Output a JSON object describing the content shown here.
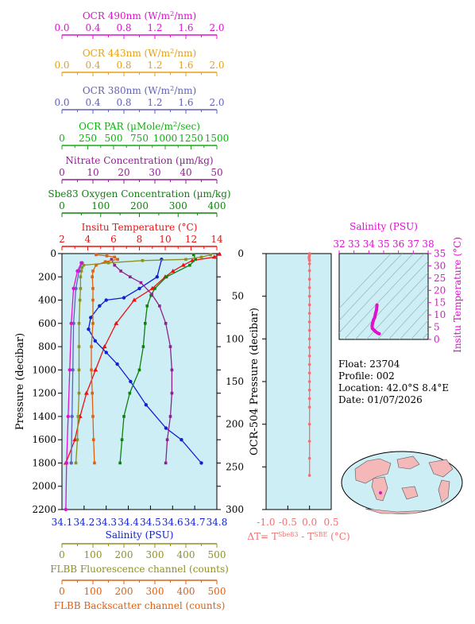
{
  "colors": {
    "ocr490": "#e010d0",
    "ocr443": "#e8a010",
    "ocr380": "#6060c0",
    "par": "#10b010",
    "nitrate": "#902090",
    "oxygen": "#108010",
    "temperature": "#ee1010",
    "salinity": "#1020d0",
    "fluorescence": "#909020",
    "backscatter": "#e06010",
    "delta_t": "#f07070",
    "tsbox": "#e010d0",
    "panel_bg": "#cdeef5"
  },
  "chart_data": [
    {
      "type": "line",
      "axes": [
        {
          "key": "ocr490",
          "label_pre": "OCR 490nm (W/m",
          "label_sup": "2",
          "label_post": "/nm)",
          "ticks": [
            "0.0",
            "0.4",
            "0.8",
            "1.2",
            "1.6",
            "2.0"
          ],
          "range": [
            0,
            2
          ]
        },
        {
          "key": "ocr443",
          "label_pre": "OCR 443nm (W/m",
          "label_sup": "2",
          "label_post": "/nm)",
          "ticks": [
            "0.0",
            "0.4",
            "0.8",
            "1.2",
            "1.6",
            "2.0"
          ],
          "range": [
            0,
            2
          ]
        },
        {
          "key": "ocr380",
          "label_pre": "OCR 380nm (W/m",
          "label_sup": "2",
          "label_post": "/nm)",
          "ticks": [
            "0.0",
            "0.4",
            "0.8",
            "1.2",
            "1.6",
            "2.0"
          ],
          "range": [
            0,
            2
          ]
        },
        {
          "key": "par",
          "label_pre": "OCR PAR (µMole/m",
          "label_sup": "2",
          "label_post": "/sec)",
          "ticks": [
            "0",
            "250",
            "500",
            "750",
            "1000",
            "1250",
            "1500"
          ],
          "range": [
            0,
            1500
          ]
        },
        {
          "key": "nitrate",
          "label_pre": "Nitrate Concentration (µm/kg)",
          "label_sup": "",
          "label_post": "",
          "ticks": [
            "0",
            "10",
            "20",
            "30",
            "40",
            "50"
          ],
          "range": [
            0,
            50
          ]
        },
        {
          "key": "oxygen",
          "label_pre": "Sbe83 Oxygen Concentration (µm/kg)",
          "label_sup": "",
          "label_post": "",
          "ticks": [
            "0",
            "100",
            "200",
            "300",
            "400"
          ],
          "range": [
            0,
            400
          ]
        },
        {
          "key": "temperature",
          "label_pre": "Insitu Temperature (°C)",
          "label_sup": "",
          "label_post": "",
          "ticks": [
            "2",
            "4",
            "6",
            "8",
            "10",
            "12",
            "14"
          ],
          "range": [
            2,
            14
          ]
        }
      ],
      "bottom_axes": [
        {
          "key": "salinity",
          "label": "Salinity (PSU)",
          "ticks": [
            "34.1",
            "34.2",
            "34.3",
            "34.4",
            "34.5",
            "34.6",
            "34.7",
            "34.8"
          ],
          "range": [
            34.1,
            34.8
          ]
        },
        {
          "key": "fluorescence",
          "label": "FLBB Fluorescence channel (counts)",
          "ticks": [
            "0",
            "100",
            "200",
            "300",
            "400",
            "500"
          ],
          "range": [
            0,
            500
          ]
        },
        {
          "key": "backscatter",
          "label": "FLBB Backscatter channel (counts)",
          "ticks": [
            "0",
            "100",
            "200",
            "300",
            "400",
            "500"
          ],
          "range": [
            0,
            500
          ]
        }
      ],
      "ylabel": "Pressure (decibar)",
      "yticks": [
        "0",
        "200",
        "400",
        "600",
        "800",
        "1000",
        "1200",
        "1400",
        "1600",
        "1800",
        "2000",
        "2200"
      ],
      "ylim": [
        2200,
        0
      ],
      "series": [
        {
          "key": "temperature",
          "x": [
            2.3,
            3.0,
            3.4,
            3.9,
            4.6,
            5.3,
            6.2,
            7.6,
            9.0,
            10.0,
            10.6,
            11.4,
            12.1,
            13.8,
            14.2
          ],
          "p": [
            1800,
            1600,
            1400,
            1200,
            1000,
            800,
            600,
            400,
            300,
            200,
            150,
            100,
            60,
            30,
            5
          ]
        },
        {
          "key": "salinity",
          "x": [
            34.73,
            34.64,
            34.57,
            34.48,
            34.41,
            34.35,
            34.3,
            34.25,
            34.22,
            34.23,
            34.27,
            34.3,
            34.38,
            34.45,
            34.53,
            34.55
          ],
          "p": [
            1800,
            1600,
            1500,
            1300,
            1100,
            950,
            850,
            750,
            650,
            550,
            450,
            400,
            380,
            300,
            200,
            50
          ]
        },
        {
          "key": "oxygen",
          "x": [
            150,
            155,
            160,
            175,
            200,
            210,
            215,
            220,
            230,
            240,
            270,
            330,
            345,
            340
          ],
          "p": [
            1800,
            1600,
            1400,
            1200,
            1000,
            800,
            600,
            450,
            360,
            300,
            200,
            100,
            50,
            10
          ]
        },
        {
          "key": "nitrate",
          "x": [
            33.5,
            34,
            35,
            35.5,
            35.5,
            35,
            33.5,
            31.5,
            29,
            25.5,
            22,
            19,
            17,
            16
          ],
          "p": [
            1800,
            1600,
            1400,
            1200,
            1000,
            800,
            600,
            450,
            350,
            250,
            200,
            150,
            100,
            50
          ]
        },
        {
          "key": "backscatter",
          "x": [
            105,
            102,
            100,
            98,
            95,
            95,
            100,
            100,
            100,
            98,
            100,
            110,
            140,
            180,
            170,
            145,
            110
          ],
          "p": [
            1800,
            1600,
            1400,
            1200,
            1000,
            800,
            600,
            400,
            300,
            200,
            150,
            100,
            70,
            50,
            30,
            20,
            10
          ]
        },
        {
          "key": "fluorescence",
          "x": [
            45,
            50,
            52,
            55,
            55,
            55,
            55,
            58,
            60,
            60,
            63,
            65,
            70,
            150,
            260,
            400,
            450,
            480
          ],
          "p": [
            1800,
            1600,
            1400,
            1200,
            1000,
            800,
            600,
            400,
            300,
            200,
            150,
            120,
            100,
            80,
            60,
            50,
            30,
            10
          ]
        },
        {
          "key": "ocr380",
          "x": [
            0.12,
            0.13,
            0.14,
            0.15,
            0.18,
            0.22,
            0.26
          ],
          "p": [
            1800,
            1400,
            1000,
            600,
            300,
            150,
            80
          ]
        },
        {
          "key": "ocr490",
          "x": [
            0.05,
            0.06,
            0.08,
            0.1,
            0.12,
            0.15,
            0.2,
            0.25
          ],
          "p": [
            2200,
            1800,
            1400,
            1000,
            600,
            300,
            150,
            80
          ]
        }
      ]
    },
    {
      "type": "line",
      "ylabel": "OCR-504 Pressure (decibar)",
      "yticks": [
        "0",
        "50",
        "100",
        "150",
        "200",
        "250",
        "300"
      ],
      "ylim": [
        300,
        0
      ],
      "xlabel_pre": "ΔT= T",
      "xlabel_sup1": "Sbe83",
      "xlabel_mid": " - T",
      "xlabel_sup2": "SBE",
      "xlabel_post": " (°C)",
      "xticks": [
        "-1.0",
        "-0.5",
        "0.0",
        "0.5"
      ],
      "xlim": [
        -1.0,
        0.5
      ],
      "series": [
        {
          "key": "delta_t",
          "x": [
            0.0,
            0.0,
            -0.01,
            -0.01,
            0.0,
            0.0,
            0.0,
            0.0,
            0.0,
            0.0,
            0.0,
            0.0,
            0.0,
            0.0,
            0.0,
            0.0,
            0.0,
            0.0,
            0.0,
            0.0,
            0.0,
            0.0,
            0.0,
            0.0,
            0.0,
            0.0,
            0.0
          ],
          "p": [
            0,
            2,
            4,
            6,
            8,
            12,
            20,
            30,
            40,
            50,
            60,
            70,
            80,
            90,
            100,
            110,
            120,
            130,
            140,
            150,
            160,
            170,
            180,
            200,
            220,
            240,
            260
          ]
        }
      ]
    },
    {
      "type": "scatter",
      "xlabel": "Salinity (PSU)",
      "xticks": [
        "32",
        "33",
        "34",
        "35",
        "36",
        "37",
        "38"
      ],
      "xlim": [
        32,
        38
      ],
      "ylabel": "Insitu Temperature (°C)",
      "yticks": [
        "0",
        "5",
        "10",
        "15",
        "20",
        "25",
        "30",
        "35"
      ],
      "ylim": [
        0,
        35
      ],
      "points": {
        "sal": [
          34.55,
          34.52,
          34.45,
          34.4,
          34.32,
          34.25,
          34.22,
          34.24,
          34.35,
          34.45,
          34.6,
          34.7
        ],
        "temp": [
          14.0,
          12.0,
          10.5,
          9.0,
          8.0,
          6.5,
          5.5,
          4.5,
          3.8,
          3.2,
          2.6,
          2.3
        ]
      }
    }
  ],
  "info": {
    "float": "Float:  23704",
    "profile": "Profile:  002",
    "location": "Location:  42.0°S   8.4°E",
    "date": "Date:  01/07/2026"
  }
}
